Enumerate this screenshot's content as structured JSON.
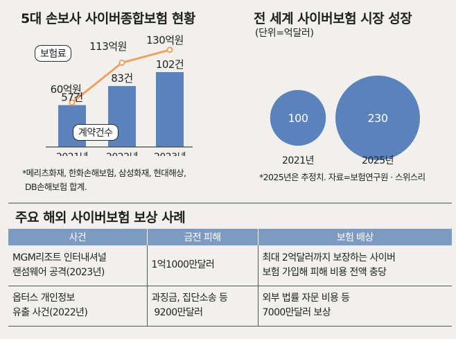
{
  "left_chart": {
    "title": "5대 손보사 사이버종합보험 현황",
    "premium_legend": "보험료",
    "contracts_legend": "계약건수",
    "footnote_line1": "*메리츠화재, 한화손해보험, 삼성화재, 현대해상,",
    "footnote_line2": "DB손해보험 합계."
  },
  "right_chart": {
    "title": "전 세계 사이버보험 시장 성장",
    "unit": "(단위=억달러)",
    "footnote": "*2025년은 추정치. 자료=보험연구원 · 스위스리"
  },
  "chart_data": [
    {
      "type": "bar",
      "title": "5대 손보사 사이버종합보험 현황",
      "categories": [
        "2021년",
        "2022년",
        "2023년"
      ],
      "series": [
        {
          "name": "계약건수",
          "values": [
            57,
            83,
            102
          ],
          "labels": [
            "57건",
            "83건",
            "102건"
          ],
          "color": "#5a82bb"
        },
        {
          "name": "보험료",
          "values": [
            60,
            113,
            130
          ],
          "labels": [
            "60억원",
            "113억원",
            "130억원"
          ],
          "color": "#f0a05a"
        }
      ]
    },
    {
      "type": "scatter",
      "title": "전 세계 사이버보험 시장 성장",
      "categories": [
        "2021년",
        "2025년"
      ],
      "values": [
        100,
        230
      ],
      "labels": [
        "100",
        "230"
      ],
      "color": "#5a82bb"
    }
  ],
  "cases": {
    "title": "주요 해외 사이버보험 보상 사례",
    "headers": [
      "사건",
      "금전 피해",
      "보험 배상"
    ],
    "rows": [
      {
        "event_1": "MGM리조트 인터내셔널",
        "event_2": "랜섬웨어 공격(2023년)",
        "damage_1": "1억1000만달러",
        "damage_2": "",
        "payout_1": "최대 2억달러까지 보장하는 사이버",
        "payout_2": "보험 가입해 피해 비용 전액 충당"
      },
      {
        "event_1": "옵터스 개인정보",
        "event_2": "유출 사건(2022년)",
        "damage_1": "과징금, 집단소송 등",
        "damage_2": " 9200만달러",
        "payout_1": "외부 법률 자문 비용 등",
        "payout_2": "7000만달러 보상"
      }
    ]
  }
}
